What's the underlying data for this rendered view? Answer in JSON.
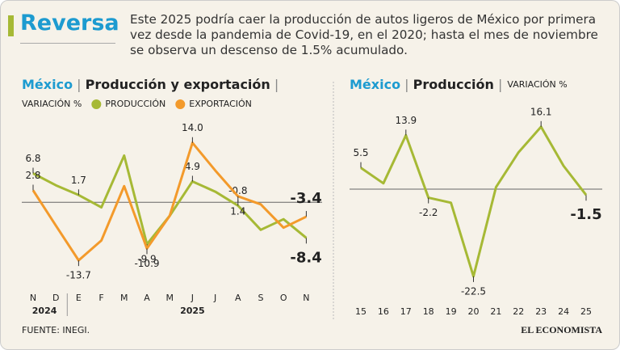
{
  "header": {
    "title": "Reversa",
    "description": "Este 2025 podría caer la producción de autos ligeros de México por primera vez desde la pandemia de Covid-19, en el 2020; hasta el mes de noviembre se observa un descenso de 1.5% acumulado."
  },
  "chart_data": [
    {
      "type": "line",
      "title_prefix": "México",
      "title": "Producción y exportación",
      "subtitle": "VARIACIÓN %",
      "categories": [
        "N",
        "D",
        "E",
        "F",
        "M",
        "A",
        "M",
        "J",
        "J",
        "A",
        "S",
        "O",
        "N"
      ],
      "year_labels": [
        "2024",
        "2025"
      ],
      "ylim": [
        -19.2,
        20.8
      ],
      "series": [
        {
          "name": "PRODUCCIÓN",
          "color": "#a6b935",
          "values": [
            6.8,
            4.0,
            1.7,
            -1.2,
            11.0,
            -9.9,
            -3.2,
            4.9,
            2.5,
            -0.8,
            -6.5,
            -4.0,
            -8.4
          ],
          "value_labels": [
            "6.8",
            null,
            "1.7",
            null,
            null,
            "-9.9",
            null,
            "4.9",
            null,
            "-0.8",
            null,
            null,
            "-8.4"
          ]
        },
        {
          "name": "EXPORTACIÓN",
          "color": "#f39a2b",
          "values": [
            2.8,
            -5.5,
            -13.7,
            -9.0,
            3.8,
            -10.9,
            -3.2,
            14.0,
            7.5,
            1.4,
            -0.5,
            -6.0,
            -3.4
          ],
          "value_labels": [
            "2.8",
            null,
            "-13.7",
            null,
            null,
            "-10.9",
            null,
            "14.0",
            null,
            "1.4",
            null,
            null,
            "-3.4"
          ]
        }
      ]
    },
    {
      "type": "line",
      "title_prefix": "México",
      "title": "Producción",
      "subtitle": "VARIACIÓN %",
      "categories": [
        "15",
        "16",
        "17",
        "18",
        "19",
        "20",
        "21",
        "22",
        "23",
        "24",
        "25"
      ],
      "ylim": [
        -24.4,
        19.4
      ],
      "series": [
        {
          "name": "Producción",
          "color": "#a6b935",
          "values": [
            5.5,
            1.5,
            13.9,
            -2.2,
            -3.5,
            -22.5,
            0.5,
            9.5,
            16.1,
            6.0,
            -1.5
          ],
          "value_labels": [
            "5.5",
            null,
            "13.9",
            "-2.2",
            null,
            "-22.5",
            null,
            null,
            "16.1",
            null,
            "-1.5"
          ]
        }
      ]
    }
  ],
  "footer": {
    "source": "FUENTE: INEGI.",
    "brand": "EL ECONOMISTA"
  }
}
